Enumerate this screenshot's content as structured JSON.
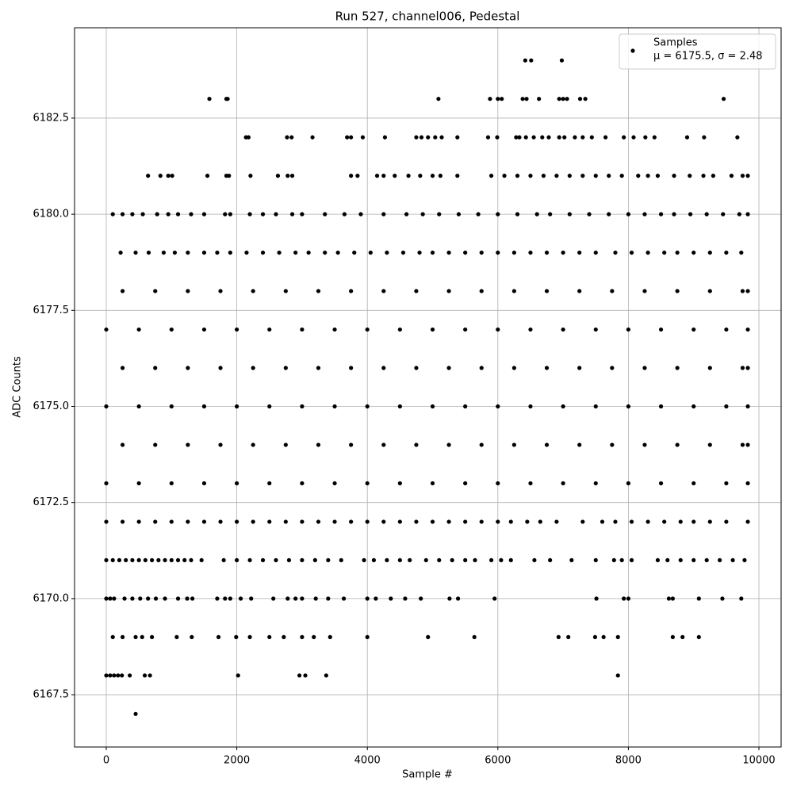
{
  "chart_data": {
    "type": "scatter",
    "title": "Run 527, channel006, Pedestal",
    "xlabel": "Sample #",
    "ylabel": "ADC Counts",
    "legend_stats": "μ = 6175.5, σ = 2.48",
    "legend": "upper right",
    "grid": true,
    "xlim": [
      -486,
      10340
    ],
    "xticks": [
      0,
      2000,
      4000,
      6000,
      8000,
      10000
    ],
    "ylim": [
      6166.14,
      6184.85
    ],
    "yticks": [
      6167.5,
      {
        "value": 6170,
        "label": "6170.0"
      },
      6172.5,
      {
        "value": 6175,
        "label": "6175.0"
      },
      6177.5,
      {
        "value": 6180,
        "label": "6180.0"
      },
      6182.5
    ],
    "x": [
      450,
      0,
      60,
      120,
      180,
      240,
      360,
      590,
      670,
      2020,
      2960,
      3050,
      3370,
      7840,
      100,
      250,
      450,
      550,
      700,
      1080,
      1310,
      1720,
      1990,
      2200,
      2500,
      2720,
      3000,
      3180,
      3430,
      4000,
      4930,
      5640,
      6930,
      7080,
      7490,
      7620,
      7840,
      8680,
      8830,
      9080,
      0,
      60,
      120,
      280,
      400,
      520,
      640,
      760,
      900,
      1100,
      1240,
      1320,
      1700,
      1820,
      1900,
      2060,
      2220,
      2560,
      2780,
      2900,
      3000,
      3210,
      3400,
      3640,
      4000,
      4130,
      4360,
      4580,
      4820,
      5260,
      5390,
      5950,
      7510,
      7930,
      8000,
      8620,
      8680,
      9080,
      9440,
      9730,
      0,
      100,
      200,
      300,
      400,
      500,
      600,
      700,
      800,
      900,
      1000,
      1100,
      1200,
      1300,
      1460,
      1800,
      2000,
      2200,
      2400,
      2600,
      2800,
      3000,
      3200,
      3400,
      3600,
      3950,
      4100,
      4300,
      4500,
      4650,
      4900,
      5100,
      5300,
      5500,
      5650,
      5900,
      6050,
      6200,
      6560,
      6800,
      7130,
      7500,
      7780,
      7900,
      8050,
      8450,
      8600,
      8800,
      9000,
      9200,
      9400,
      9600,
      9780,
      0,
      250,
      500,
      750,
      1000,
      1250,
      1500,
      1750,
      2000,
      2250,
      2500,
      2750,
      3000,
      3250,
      3500,
      3750,
      4000,
      4250,
      4500,
      4750,
      5000,
      5250,
      5500,
      5750,
      6000,
      6200,
      6450,
      6650,
      6900,
      7300,
      7600,
      7800,
      8050,
      8300,
      8550,
      8800,
      9000,
      9250,
      9500,
      9830,
      0,
      500,
      1000,
      1500,
      2000,
      2500,
      3000,
      3500,
      4000,
      4500,
      5000,
      5500,
      6000,
      6500,
      7000,
      7500,
      8000,
      8500,
      9000,
      9500,
      9830,
      250,
      750,
      1250,
      1750,
      2250,
      2750,
      3250,
      3750,
      4250,
      4750,
      5250,
      5750,
      6250,
      6750,
      7250,
      7750,
      8250,
      8750,
      9250,
      9750,
      9830,
      0,
      500,
      1000,
      1500,
      2000,
      2500,
      3000,
      3500,
      4000,
      4500,
      5000,
      5500,
      6000,
      6500,
      7000,
      7500,
      8000,
      8500,
      9000,
      9500,
      9830,
      250,
      750,
      1250,
      1750,
      2250,
      2750,
      3250,
      3750,
      4250,
      4750,
      5250,
      5750,
      6250,
      6750,
      7250,
      7750,
      8250,
      8750,
      9250,
      9750,
      9830,
      0,
      500,
      1000,
      1500,
      2000,
      2500,
      3000,
      3500,
      4000,
      4500,
      5000,
      5500,
      6000,
      6500,
      7000,
      7500,
      8000,
      8500,
      9000,
      9500,
      9830,
      250,
      750,
      1250,
      1750,
      2250,
      2750,
      3250,
      3750,
      4250,
      4750,
      5250,
      5750,
      6250,
      6750,
      7250,
      7750,
      8250,
      8750,
      9250,
      9750,
      9830,
      220,
      450,
      650,
      880,
      1050,
      1250,
      1500,
      1700,
      1900,
      2150,
      2400,
      2650,
      2900,
      3100,
      3350,
      3550,
      3800,
      4050,
      4300,
      4550,
      4800,
      5000,
      5250,
      5500,
      5750,
      6000,
      6250,
      6500,
      6750,
      7000,
      7250,
      7500,
      7800,
      8050,
      8300,
      8550,
      8750,
      9000,
      9250,
      9500,
      9730,
      100,
      250,
      400,
      560,
      780,
      950,
      1100,
      1300,
      1500,
      1820,
      1900,
      2200,
      2400,
      2600,
      2850,
      3000,
      3350,
      3650,
      3900,
      4250,
      4600,
      4850,
      5100,
      5400,
      5700,
      6000,
      6300,
      6600,
      6800,
      7100,
      7400,
      7700,
      8000,
      8250,
      8500,
      8700,
      8950,
      9200,
      9450,
      9700,
      9830,
      640,
      830,
      950,
      1010,
      1550,
      1840,
      1880,
      2210,
      2630,
      2780,
      2850,
      3750,
      3850,
      4150,
      4250,
      4420,
      4630,
      4810,
      5000,
      5120,
      5380,
      5900,
      6100,
      6300,
      6500,
      6700,
      6900,
      7100,
      7300,
      7500,
      7700,
      7900,
      8150,
      8300,
      8450,
      8700,
      8940,
      9150,
      9300,
      9580,
      9750,
      9830,
      2140,
      2180,
      2770,
      2840,
      3160,
      3690,
      3750,
      3930,
      4270,
      4750,
      4830,
      4930,
      5040,
      5140,
      5380,
      5850,
      5990,
      6280,
      6330,
      6430,
      6550,
      6680,
      6780,
      6940,
      7020,
      7180,
      7300,
      7440,
      7650,
      7930,
      8080,
      8260,
      8400,
      8900,
      9160,
      9670,
      1580,
      1840,
      1860,
      5090,
      5880,
      6000,
      6060,
      6380,
      6440,
      6630,
      6940,
      7000,
      7060,
      7260,
      7340,
      9460,
      6420,
      6510,
      6980
    ],
    "series": [
      {
        "name": "Samples",
        "color": "#000000",
        "values": [
          6167,
          6168,
          6168,
          6168,
          6168,
          6168,
          6168,
          6168,
          6168,
          6168,
          6168,
          6168,
          6168,
          6168,
          6169,
          6169,
          6169,
          6169,
          6169,
          6169,
          6169,
          6169,
          6169,
          6169,
          6169,
          6169,
          6169,
          6169,
          6169,
          6169,
          6169,
          6169,
          6169,
          6169,
          6169,
          6169,
          6169,
          6169,
          6169,
          6169,
          6170,
          6170,
          6170,
          6170,
          6170,
          6170,
          6170,
          6170,
          6170,
          6170,
          6170,
          6170,
          6170,
          6170,
          6170,
          6170,
          6170,
          6170,
          6170,
          6170,
          6170,
          6170,
          6170,
          6170,
          6170,
          6170,
          6170,
          6170,
          6170,
          6170,
          6170,
          6170,
          6170,
          6170,
          6170,
          6170,
          6170,
          6170,
          6170,
          6170,
          6171,
          6171,
          6171,
          6171,
          6171,
          6171,
          6171,
          6171,
          6171,
          6171,
          6171,
          6171,
          6171,
          6171,
          6171,
          6171,
          6171,
          6171,
          6171,
          6171,
          6171,
          6171,
          6171,
          6171,
          6171,
          6171,
          6171,
          6171,
          6171,
          6171,
          6171,
          6171,
          6171,
          6171,
          6171,
          6171,
          6171,
          6171,
          6171,
          6171,
          6171,
          6171,
          6171,
          6171,
          6171,
          6171,
          6171,
          6171,
          6171,
          6171,
          6171,
          6171,
          6171,
          6172,
          6172,
          6172,
          6172,
          6172,
          6172,
          6172,
          6172,
          6172,
          6172,
          6172,
          6172,
          6172,
          6172,
          6172,
          6172,
          6172,
          6172,
          6172,
          6172,
          6172,
          6172,
          6172,
          6172,
          6172,
          6172,
          6172,
          6172,
          6172,
          6172,
          6172,
          6172,
          6172,
          6172,
          6172,
          6172,
          6172,
          6172,
          6172,
          6172,
          6173,
          6173,
          6173,
          6173,
          6173,
          6173,
          6173,
          6173,
          6173,
          6173,
          6173,
          6173,
          6173,
          6173,
          6173,
          6173,
          6173,
          6173,
          6173,
          6173,
          6173,
          6174,
          6174,
          6174,
          6174,
          6174,
          6174,
          6174,
          6174,
          6174,
          6174,
          6174,
          6174,
          6174,
          6174,
          6174,
          6174,
          6174,
          6174,
          6174,
          6174,
          6174,
          6175,
          6175,
          6175,
          6175,
          6175,
          6175,
          6175,
          6175,
          6175,
          6175,
          6175,
          6175,
          6175,
          6175,
          6175,
          6175,
          6175,
          6175,
          6175,
          6175,
          6175,
          6176,
          6176,
          6176,
          6176,
          6176,
          6176,
          6176,
          6176,
          6176,
          6176,
          6176,
          6176,
          6176,
          6176,
          6176,
          6176,
          6176,
          6176,
          6176,
          6176,
          6176,
          6177,
          6177,
          6177,
          6177,
          6177,
          6177,
          6177,
          6177,
          6177,
          6177,
          6177,
          6177,
          6177,
          6177,
          6177,
          6177,
          6177,
          6177,
          6177,
          6177,
          6177,
          6178,
          6178,
          6178,
          6178,
          6178,
          6178,
          6178,
          6178,
          6178,
          6178,
          6178,
          6178,
          6178,
          6178,
          6178,
          6178,
          6178,
          6178,
          6178,
          6178,
          6178,
          6179,
          6179,
          6179,
          6179,
          6179,
          6179,
          6179,
          6179,
          6179,
          6179,
          6179,
          6179,
          6179,
          6179,
          6179,
          6179,
          6179,
          6179,
          6179,
          6179,
          6179,
          6179,
          6179,
          6179,
          6179,
          6179,
          6179,
          6179,
          6179,
          6179,
          6179,
          6179,
          6179,
          6179,
          6179,
          6179,
          6179,
          6179,
          6179,
          6179,
          6179,
          6180,
          6180,
          6180,
          6180,
          6180,
          6180,
          6180,
          6180,
          6180,
          6180,
          6180,
          6180,
          6180,
          6180,
          6180,
          6180,
          6180,
          6180,
          6180,
          6180,
          6180,
          6180,
          6180,
          6180,
          6180,
          6180,
          6180,
          6180,
          6180,
          6180,
          6180,
          6180,
          6180,
          6180,
          6180,
          6180,
          6180,
          6180,
          6180,
          6180,
          6180,
          6181,
          6181,
          6181,
          6181,
          6181,
          6181,
          6181,
          6181,
          6181,
          6181,
          6181,
          6181,
          6181,
          6181,
          6181,
          6181,
          6181,
          6181,
          6181,
          6181,
          6181,
          6181,
          6181,
          6181,
          6181,
          6181,
          6181,
          6181,
          6181,
          6181,
          6181,
          6181,
          6181,
          6181,
          6181,
          6181,
          6181,
          6181,
          6181,
          6181,
          6181,
          6181,
          6182,
          6182,
          6182,
          6182,
          6182,
          6182,
          6182,
          6182,
          6182,
          6182,
          6182,
          6182,
          6182,
          6182,
          6182,
          6182,
          6182,
          6182,
          6182,
          6182,
          6182,
          6182,
          6182,
          6182,
          6182,
          6182,
          6182,
          6182,
          6182,
          6182,
          6182,
          6182,
          6182,
          6182,
          6182,
          6182,
          6183,
          6183,
          6183,
          6183,
          6183,
          6183,
          6183,
          6183,
          6183,
          6183,
          6183,
          6183,
          6183,
          6183,
          6183,
          6183,
          6184,
          6184,
          6184
        ]
      }
    ]
  }
}
